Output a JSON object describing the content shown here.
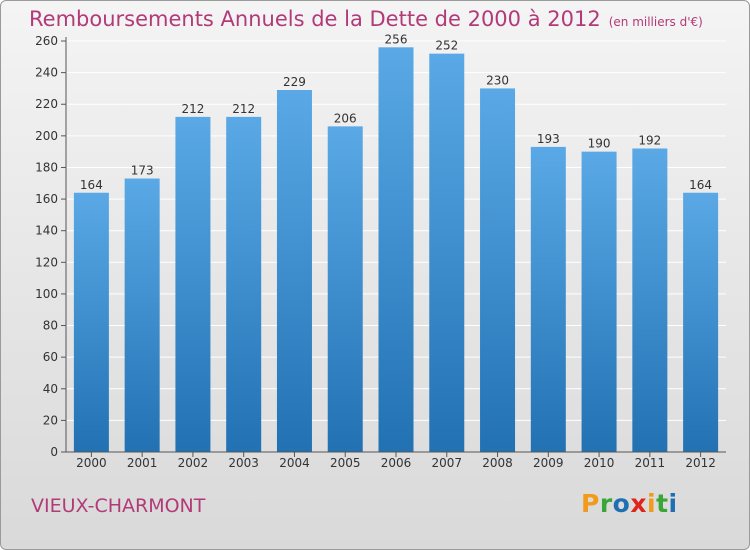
{
  "page": {
    "title": "Remboursements Annuels de la Dette de 2000 à 2012",
    "subtitle": "(en milliers d'€)",
    "commune": "VIEUX-CHARMONT"
  },
  "logo": {
    "text": "Proxiti",
    "letters": [
      {
        "ch": "P",
        "color": "#f29a1a"
      },
      {
        "ch": "r",
        "color": "#3aa635"
      },
      {
        "ch": "o",
        "color": "#1f6fb3"
      },
      {
        "ch": "x",
        "color": "#e2231a"
      },
      {
        "ch": "i",
        "color": "#f29a1a"
      },
      {
        "ch": "t",
        "color": "#3aa635"
      },
      {
        "ch": "i",
        "color": "#1f6fb3"
      }
    ]
  },
  "chart_data": {
    "type": "bar",
    "categories": [
      "2000",
      "2001",
      "2002",
      "2003",
      "2004",
      "2005",
      "2006",
      "2007",
      "2008",
      "2009",
      "2010",
      "2011",
      "2012"
    ],
    "values": [
      164,
      173,
      212,
      212,
      229,
      206,
      256,
      252,
      230,
      193,
      190,
      192,
      164
    ],
    "ylim": [
      0,
      260
    ],
    "yticks": [
      0,
      20,
      40,
      60,
      80,
      100,
      120,
      140,
      160,
      180,
      200,
      220,
      240,
      260
    ],
    "grid": true,
    "colors": {
      "bar_top": "#5aa9e6",
      "bar_bottom": "#2271b3",
      "grid": "#ffffff",
      "text": "#333333"
    }
  }
}
